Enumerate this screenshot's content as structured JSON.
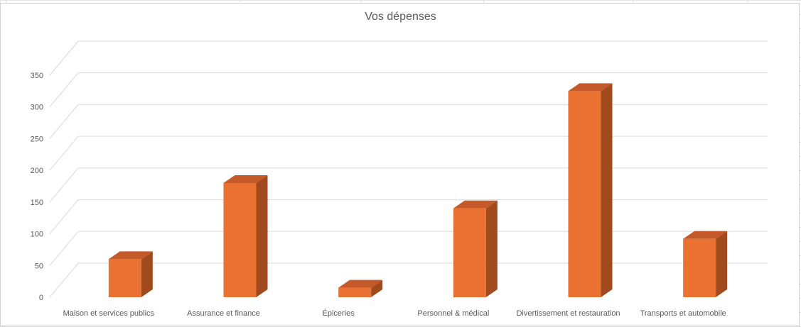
{
  "chart_data": {
    "type": "bar",
    "title": "Vos dépenses",
    "categories": [
      "Maison et services publics",
      "Assurance et finance",
      "Épiceries",
      "Personnel & médical",
      "Divertissement et restauration",
      "Transports et automobile"
    ],
    "values": [
      60,
      180,
      15,
      140,
      325,
      92
    ],
    "yticks": [
      "0",
      "50",
      "100",
      "150",
      "200",
      "250",
      "300",
      "350"
    ],
    "ylim": [
      0,
      350
    ],
    "xlabel": "",
    "ylabel": "",
    "grid": true,
    "legend": "none",
    "style": "3d-column",
    "colors": {
      "bar_front": "#e97132",
      "bar_side": "#a04a1d",
      "bar_top": "#c4592a",
      "gridline": "#d9d9d9",
      "text": "#595959"
    }
  }
}
